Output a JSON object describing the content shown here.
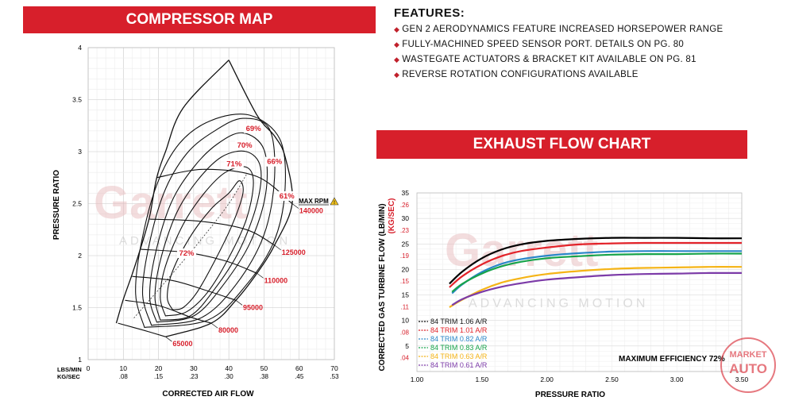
{
  "compressor_banner": "COMPRESSOR MAP",
  "exhaust_banner": "EXHAUST FLOW CHART",
  "features": {
    "title": "FEATURES:",
    "items": [
      "GEN 2 AERODYNAMICS FEATURE INCREASED HORSEPOWER RANGE",
      "FULLY-MACHINED SPEED SENSOR PORT.  DETAILS ON PG. 80",
      "WASTEGATE ACTUATORS & BRACKET KIT AVAILABLE ON PG. 81",
      "REVERSE ROTATION CONFIGURATIONS AVAILABLE"
    ]
  },
  "watermark": {
    "brand": "Garrett",
    "tagline": "ADVANCING MOTION",
    "badge_top": "MARKET",
    "badge_bottom": "AUTO"
  },
  "chart_data": [
    {
      "type": "line",
      "title": "COMPRESSOR MAP",
      "xlabel": "CORRECTED AIR FLOW",
      "ylabel": "PRESSURE RATIO",
      "x_unit_labels": [
        "LBS/MIN",
        "KG/SEC"
      ],
      "x_ticks_lbs_min": [
        "0",
        "10",
        "20",
        "30",
        "40",
        "50",
        "60",
        "70"
      ],
      "x_ticks_kg_sec": [
        ".08",
        ".15",
        ".23",
        ".30",
        ".38",
        ".45",
        ".53"
      ],
      "y_ticks": [
        "1",
        "1.5",
        "2",
        "2.5",
        "3",
        "3.5",
        "4"
      ],
      "xlim": [
        0,
        70
      ],
      "ylim": [
        1,
        4
      ],
      "grid": true,
      "max_rpm_label": "MAX RPM",
      "speed_lines": [
        {
          "label": "65000",
          "points": [
            [
              8.5,
              1.35
            ],
            [
              16,
              1.28
            ],
            [
              22,
              1.22
            ]
          ]
        },
        {
          "label": "80000",
          "points": [
            [
              10.5,
              1.57
            ],
            [
              20,
              1.52
            ],
            [
              29,
              1.41
            ],
            [
              35,
              1.35
            ]
          ]
        },
        {
          "label": "95000",
          "points": [
            [
              12.5,
              1.8
            ],
            [
              24,
              1.76
            ],
            [
              34,
              1.66
            ],
            [
              42,
              1.57
            ]
          ]
        },
        {
          "label": "110000",
          "points": [
            [
              15,
              2.06
            ],
            [
              28,
              2.03
            ],
            [
              39,
              1.95
            ],
            [
              48,
              1.83
            ]
          ]
        },
        {
          "label": "125000",
          "points": [
            [
              17.5,
              2.35
            ],
            [
              32,
              2.33
            ],
            [
              45,
              2.25
            ],
            [
              53,
              2.1
            ]
          ]
        },
        {
          "label": "140000",
          "points": [
            [
              19.5,
              2.75
            ],
            [
              33,
              2.83
            ],
            [
              48,
              2.76
            ],
            [
              58,
              2.5
            ]
          ]
        }
      ],
      "surge_line": [
        [
          8,
          1.35
        ],
        [
          10,
          1.58
        ],
        [
          12.5,
          1.82
        ],
        [
          15,
          2.08
        ],
        [
          17.5,
          2.38
        ],
        [
          19.5,
          2.75
        ],
        [
          22,
          3.0
        ],
        [
          27,
          3.42
        ],
        [
          40,
          3.88
        ]
      ],
      "choke_line": [
        [
          22,
          1.22
        ],
        [
          35,
          1.35
        ],
        [
          42,
          1.57
        ],
        [
          48,
          1.83
        ],
        [
          53,
          2.1
        ],
        [
          58,
          2.5
        ],
        [
          56,
          2.95
        ],
        [
          53,
          3.15
        ],
        [
          48,
          3.35
        ],
        [
          40,
          3.88
        ]
      ],
      "efficiency_islands": [
        {
          "label": "72%",
          "points": [
            [
              24,
              1.48
            ],
            [
              22.5,
              1.6
            ],
            [
              24,
              1.85
            ],
            [
              29,
              2.18
            ],
            [
              35,
              2.45
            ],
            [
              40,
              2.6
            ],
            [
              43,
              2.72
            ],
            [
              44,
              2.6
            ],
            [
              41,
              2.3
            ],
            [
              36,
              1.95
            ],
            [
              31,
              1.65
            ],
            [
              27,
              1.5
            ],
            [
              24,
              1.48
            ]
          ]
        },
        {
          "label": "71%",
          "points": [
            [
              22,
              1.42
            ],
            [
              20.5,
              1.6
            ],
            [
              22,
              1.9
            ],
            [
              27,
              2.3
            ],
            [
              33,
              2.6
            ],
            [
              39,
              2.8
            ],
            [
              45,
              2.85
            ],
            [
              47,
              2.7
            ],
            [
              45,
              2.35
            ],
            [
              40,
              1.98
            ],
            [
              34,
              1.65
            ],
            [
              28,
              1.46
            ],
            [
              22,
              1.42
            ]
          ]
        },
        {
          "label": "70%",
          "points": [
            [
              20.5,
              1.38
            ],
            [
              19,
              1.6
            ],
            [
              20.5,
              1.95
            ],
            [
              25,
              2.4
            ],
            [
              31,
              2.72
            ],
            [
              38,
              2.95
            ],
            [
              45,
              3.0
            ],
            [
              49,
              2.85
            ],
            [
              48,
              2.5
            ],
            [
              43,
              2.05
            ],
            [
              36,
              1.68
            ],
            [
              29,
              1.42
            ],
            [
              20.5,
              1.38
            ]
          ]
        },
        {
          "label": "69%",
          "points": [
            [
              19.5,
              1.36
            ],
            [
              17.5,
              1.6
            ],
            [
              19,
              2.0
            ],
            [
              23.5,
              2.5
            ],
            [
              30,
              2.85
            ],
            [
              37,
              3.08
            ],
            [
              44,
              3.18
            ],
            [
              50,
              3.02
            ],
            [
              50.5,
              2.6
            ],
            [
              46,
              2.12
            ],
            [
              38,
              1.7
            ],
            [
              30,
              1.42
            ],
            [
              19.5,
              1.36
            ]
          ]
        },
        {
          "label": "66%",
          "points": [
            [
              18,
              1.33
            ],
            [
              15.5,
              1.62
            ],
            [
              17,
              2.05
            ],
            [
              21.5,
              2.6
            ],
            [
              28,
              2.98
            ],
            [
              36,
              3.2
            ],
            [
              44,
              3.32
            ],
            [
              51.5,
              3.22
            ],
            [
              53,
              2.75
            ],
            [
              50,
              2.2
            ],
            [
              42,
              1.72
            ],
            [
              32,
              1.4
            ],
            [
              18,
              1.33
            ]
          ]
        },
        {
          "label": "61%",
          "points": [
            [
              16,
              1.31
            ],
            [
              13.5,
              1.63
            ],
            [
              15,
              2.1
            ],
            [
              19.5,
              2.68
            ],
            [
              26,
              3.08
            ],
            [
              35,
              3.3
            ],
            [
              46,
              3.35
            ],
            [
              54.5,
              3.12
            ],
            [
              56,
              2.65
            ],
            [
              53,
              2.15
            ],
            [
              45,
              1.72
            ],
            [
              34,
              1.38
            ],
            [
              16,
              1.31
            ]
          ]
        }
      ],
      "optimal_line": [
        [
          13,
          1.4
        ],
        [
          22,
          1.75
        ],
        [
          32,
          2.15
        ],
        [
          40,
          2.5
        ],
        [
          45,
          2.78
        ]
      ]
    },
    {
      "type": "line",
      "title": "EXHAUST FLOW CHART",
      "xlabel": "PRESSURE RATIO",
      "ylabel": "CORRECTED GAS TURBINE FLOW (LB/MIN)",
      "ylabel_secondary": "(KG/SEC)",
      "x_ticks": [
        "1.00",
        "1.50",
        "2.00",
        "2.50",
        "3.00",
        "3.50"
      ],
      "xlim": [
        1.0,
        3.5
      ],
      "y_ticks_lb_min": [
        "5",
        "10",
        "15",
        "20",
        "25",
        "30",
        "35"
      ],
      "y_ticks_kg_sec": [
        ".04",
        ".08",
        ".11",
        ".15",
        ".19",
        ".23",
        ".26"
      ],
      "ylim": [
        0,
        35
      ],
      "grid": true,
      "annotation": "MAXIMUM EFFICIENCY 72%",
      "series": [
        {
          "name": "84 TRIM 1.06 A/R",
          "color": "#000000",
          "x": [
            1.25,
            1.35,
            1.5,
            1.65,
            1.8,
            2.0,
            2.25,
            2.5,
            2.75,
            3.0,
            3.25,
            3.5
          ],
          "y": [
            17.2,
            19.6,
            22.2,
            23.9,
            24.9,
            25.6,
            26.0,
            26.2,
            26.2,
            26.2,
            26.1,
            26.1
          ]
        },
        {
          "name": "84 TRIM 1.01 A/R",
          "color": "#e3232a",
          "x": [
            1.25,
            1.35,
            1.5,
            1.65,
            1.8,
            2.0,
            2.25,
            2.5,
            2.75,
            3.0,
            3.25,
            3.5
          ],
          "y": [
            16.5,
            18.7,
            21.0,
            22.6,
            23.6,
            24.3,
            24.9,
            25.1,
            25.2,
            25.2,
            25.2,
            25.2
          ]
        },
        {
          "name": "84 TRIM 0.82 A/R",
          "color": "#2a86c8",
          "x": [
            1.27,
            1.35,
            1.5,
            1.65,
            1.8,
            2.0,
            2.25,
            2.5,
            2.75,
            3.0,
            3.25,
            3.5
          ],
          "y": [
            15.3,
            17.1,
            19.5,
            21.1,
            22.0,
            22.7,
            23.2,
            23.5,
            23.6,
            23.6,
            23.6,
            23.6
          ]
        },
        {
          "name": "84 TRIM 0.83 A/R",
          "color": "#16a34a",
          "x": [
            1.27,
            1.35,
            1.5,
            1.65,
            1.8,
            2.0,
            2.25,
            2.5,
            2.75,
            3.0,
            3.25,
            3.5
          ],
          "y": [
            15.6,
            17.2,
            19.2,
            20.6,
            21.5,
            22.2,
            22.6,
            22.9,
            23.0,
            23.0,
            23.1,
            23.1
          ]
        },
        {
          "name": "84 TRIM 0.63 A/R",
          "color": "#f5b416",
          "x": [
            1.25,
            1.35,
            1.5,
            1.65,
            1.8,
            2.0,
            2.25,
            2.5,
            2.75,
            3.0,
            3.25,
            3.5
          ],
          "y": [
            12.6,
            14.1,
            16.0,
            17.4,
            18.3,
            19.1,
            19.7,
            20.1,
            20.3,
            20.4,
            20.5,
            20.5
          ]
        },
        {
          "name": "84 TRIM 0.61 A/R",
          "color": "#7c3ba8",
          "x": [
            1.27,
            1.35,
            1.5,
            1.65,
            1.8,
            2.0,
            2.25,
            2.5,
            2.75,
            3.0,
            3.25,
            3.5
          ],
          "y": [
            13.0,
            14.2,
            15.6,
            16.6,
            17.3,
            18.0,
            18.5,
            18.9,
            19.1,
            19.2,
            19.3,
            19.3
          ]
        }
      ]
    }
  ]
}
